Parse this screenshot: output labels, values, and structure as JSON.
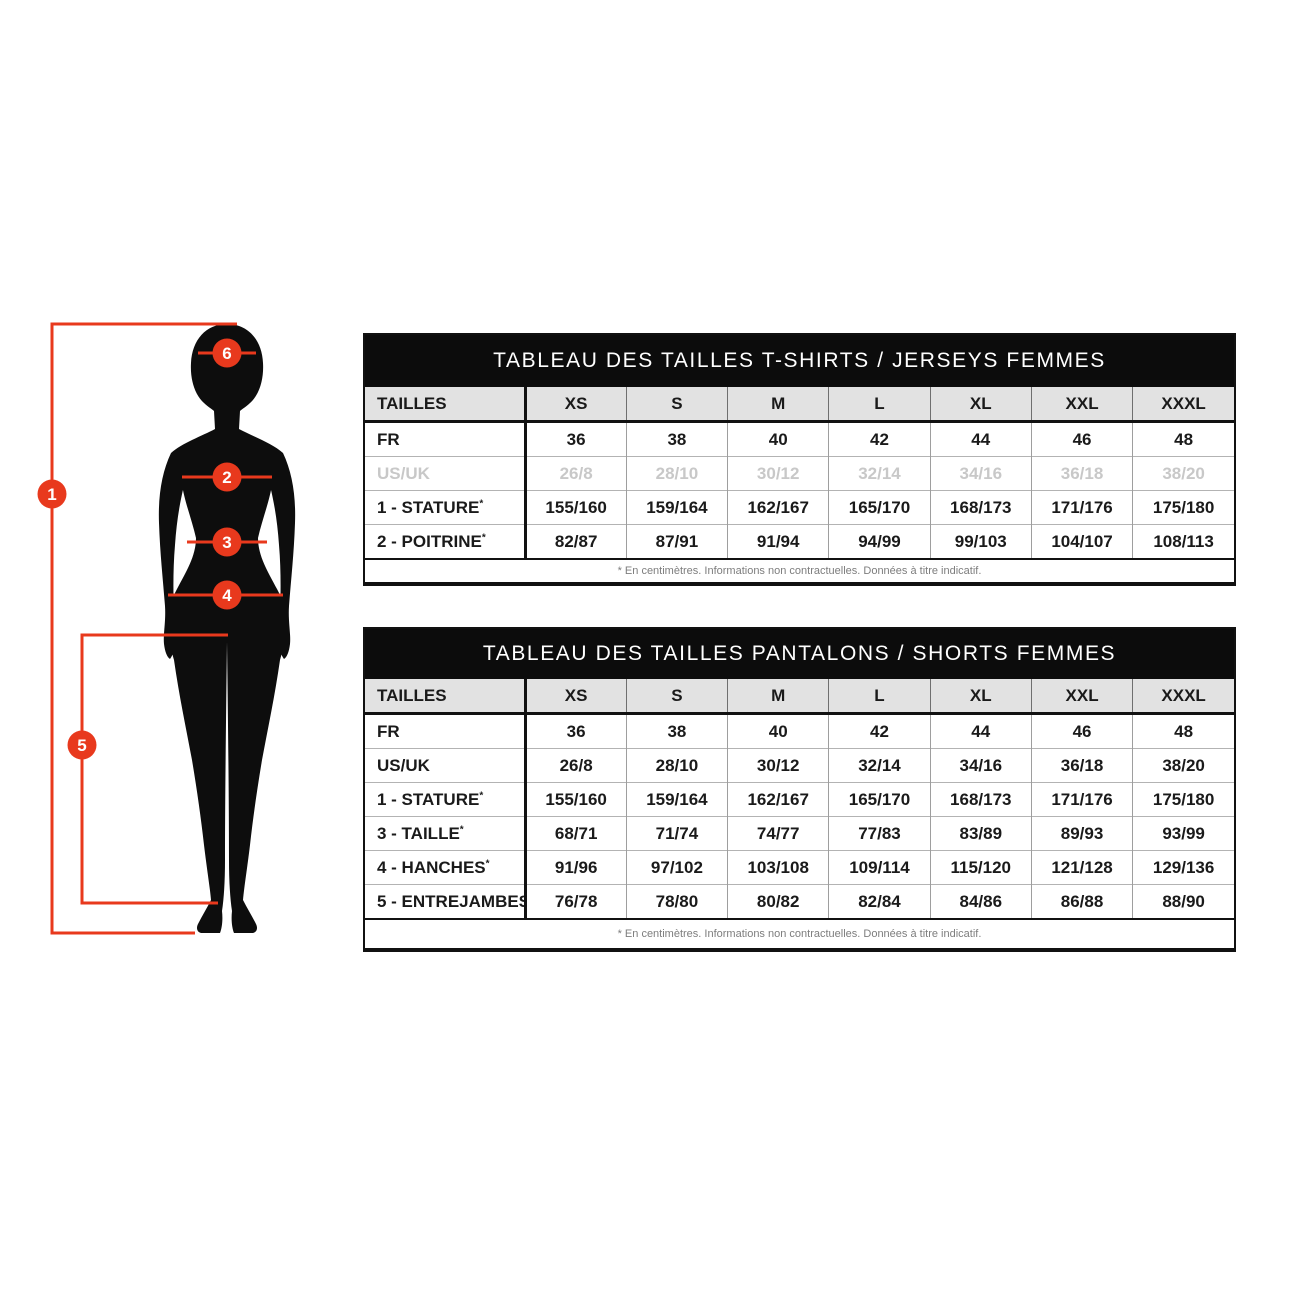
{
  "colors": {
    "accent": "#e8391d",
    "silhouette": "#0d0d0d"
  },
  "figure": {
    "marker_labels": [
      "1",
      "2",
      "3",
      "4",
      "5",
      "6"
    ]
  },
  "tables": [
    {
      "title": "TABLEAU DES TAILLES T-SHIRTS / JERSEYS FEMMES",
      "header": [
        "TAILLES",
        "XS",
        "S",
        "M",
        "L",
        "XL",
        "XXL",
        "XXXL"
      ],
      "rows": [
        {
          "label": "FR",
          "star": "",
          "muted": false,
          "values": [
            "36",
            "38",
            "40",
            "42",
            "44",
            "46",
            "48"
          ]
        },
        {
          "label": "US/UK",
          "star": "",
          "muted": true,
          "values": [
            "26/8",
            "28/10",
            "30/12",
            "32/14",
            "34/16",
            "36/18",
            "38/20"
          ]
        },
        {
          "label": "1 - STATURE",
          "star": "*",
          "muted": false,
          "values": [
            "155/160",
            "159/164",
            "162/167",
            "165/170",
            "168/173",
            "171/176",
            "175/180"
          ]
        },
        {
          "label": "2 - POITRINE",
          "star": "*",
          "muted": false,
          "values": [
            "82/87",
            "87/91",
            "91/94",
            "94/99",
            "99/103",
            "104/107",
            "108/113"
          ]
        }
      ],
      "footnote": "* En centimètres. Informations non contractuelles. Données à titre indicatif."
    },
    {
      "title": "TABLEAU DES TAILLES PANTALONS / SHORTS FEMMES",
      "header": [
        "TAILLES",
        "XS",
        "S",
        "M",
        "L",
        "XL",
        "XXL",
        "XXXL"
      ],
      "rows": [
        {
          "label": "FR",
          "star": "",
          "muted": false,
          "values": [
            "36",
            "38",
            "40",
            "42",
            "44",
            "46",
            "48"
          ]
        },
        {
          "label": "US/UK",
          "star": "",
          "muted": false,
          "values": [
            "26/8",
            "28/10",
            "30/12",
            "32/14",
            "34/16",
            "36/18",
            "38/20"
          ]
        },
        {
          "label": "1 - STATURE",
          "star": "*",
          "muted": false,
          "values": [
            "155/160",
            "159/164",
            "162/167",
            "165/170",
            "168/173",
            "171/176",
            "175/180"
          ]
        },
        {
          "label": "3 - TAILLE",
          "star": "*",
          "muted": false,
          "values": [
            "68/71",
            "71/74",
            "74/77",
            "77/83",
            "83/89",
            "89/93",
            "93/99"
          ]
        },
        {
          "label": "4 - HANCHES",
          "star": "*",
          "muted": false,
          "values": [
            "91/96",
            "97/102",
            "103/108",
            "109/114",
            "115/120",
            "121/128",
            "129/136"
          ]
        },
        {
          "label": "5 - ENTREJAMBES",
          "star": "*",
          "muted": false,
          "values": [
            "76/78",
            "78/80",
            "80/82",
            "82/84",
            "84/86",
            "86/88",
            "88/90"
          ]
        }
      ],
      "footnote": "* En centimètres. Informations non contractuelles. Données à titre indicatif."
    }
  ]
}
